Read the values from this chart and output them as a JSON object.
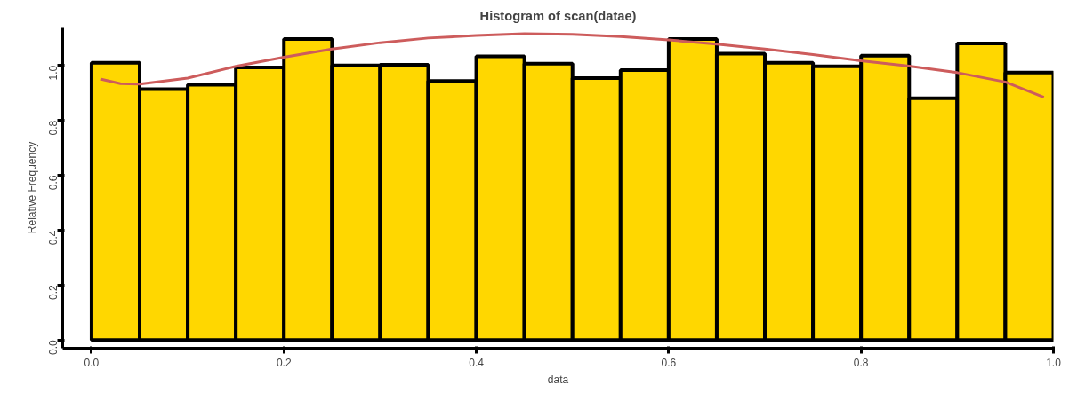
{
  "chart_data": {
    "type": "histogram",
    "title": "Histogram of scan(datae)",
    "xlabel": "data",
    "ylabel": "Relative Frequency",
    "bins": [
      0,
      0.05,
      0.1,
      0.15,
      0.2,
      0.25,
      0.3,
      0.35,
      0.4,
      0.45,
      0.5,
      0.55,
      0.6,
      0.65,
      0.7,
      0.75,
      0.8,
      0.85,
      0.9,
      0.95,
      1.0
    ],
    "values": [
      1.01,
      0.914,
      0.93,
      0.993,
      1.096,
      1.0,
      1.003,
      0.944,
      1.033,
      1.007,
      0.954,
      0.983,
      1.096,
      1.043,
      1.01,
      0.997,
      1.036,
      0.881,
      1.08,
      0.974
    ],
    "color": "#ffd700",
    "series": [
      {
        "type": "line",
        "color": "#cd5c5c",
        "x": [
          0.01,
          0.03,
          0.05,
          0.1,
          0.15,
          0.2,
          0.25,
          0.3,
          0.35,
          0.4,
          0.45,
          0.5,
          0.55,
          0.6,
          0.65,
          0.7,
          0.75,
          0.8,
          0.85,
          0.9,
          0.95,
          0.99
        ],
        "values": [
          0.95,
          0.934,
          0.932,
          0.954,
          0.997,
          1.03,
          1.06,
          1.083,
          1.1,
          1.109,
          1.116,
          1.113,
          1.105,
          1.093,
          1.078,
          1.06,
          1.04,
          1.017,
          0.998,
          0.974,
          0.94,
          0.884
        ]
      }
    ],
    "xlim": [
      -0.03,
      1.0
    ],
    "ylim": [
      -0.03,
      1.14
    ],
    "xticks": [
      {
        "value": 0,
        "label": "0.0"
      },
      {
        "value": 0.2,
        "label": "0.2"
      },
      {
        "value": 0.4,
        "label": "0.4"
      },
      {
        "value": 0.6,
        "label": "0.6"
      },
      {
        "value": 0.8,
        "label": "0.8"
      },
      {
        "value": 1.0,
        "label": "1.0"
      }
    ],
    "yticks": [
      {
        "value": 0,
        "label": "0.0"
      },
      {
        "value": 0.2,
        "label": "0.2"
      },
      {
        "value": 0.4,
        "label": "0.4"
      },
      {
        "value": 0.6,
        "label": "0.6"
      },
      {
        "value": 0.8,
        "label": "0.8"
      },
      {
        "value": 1.0,
        "label": "1.0"
      }
    ],
    "grid": false
  }
}
